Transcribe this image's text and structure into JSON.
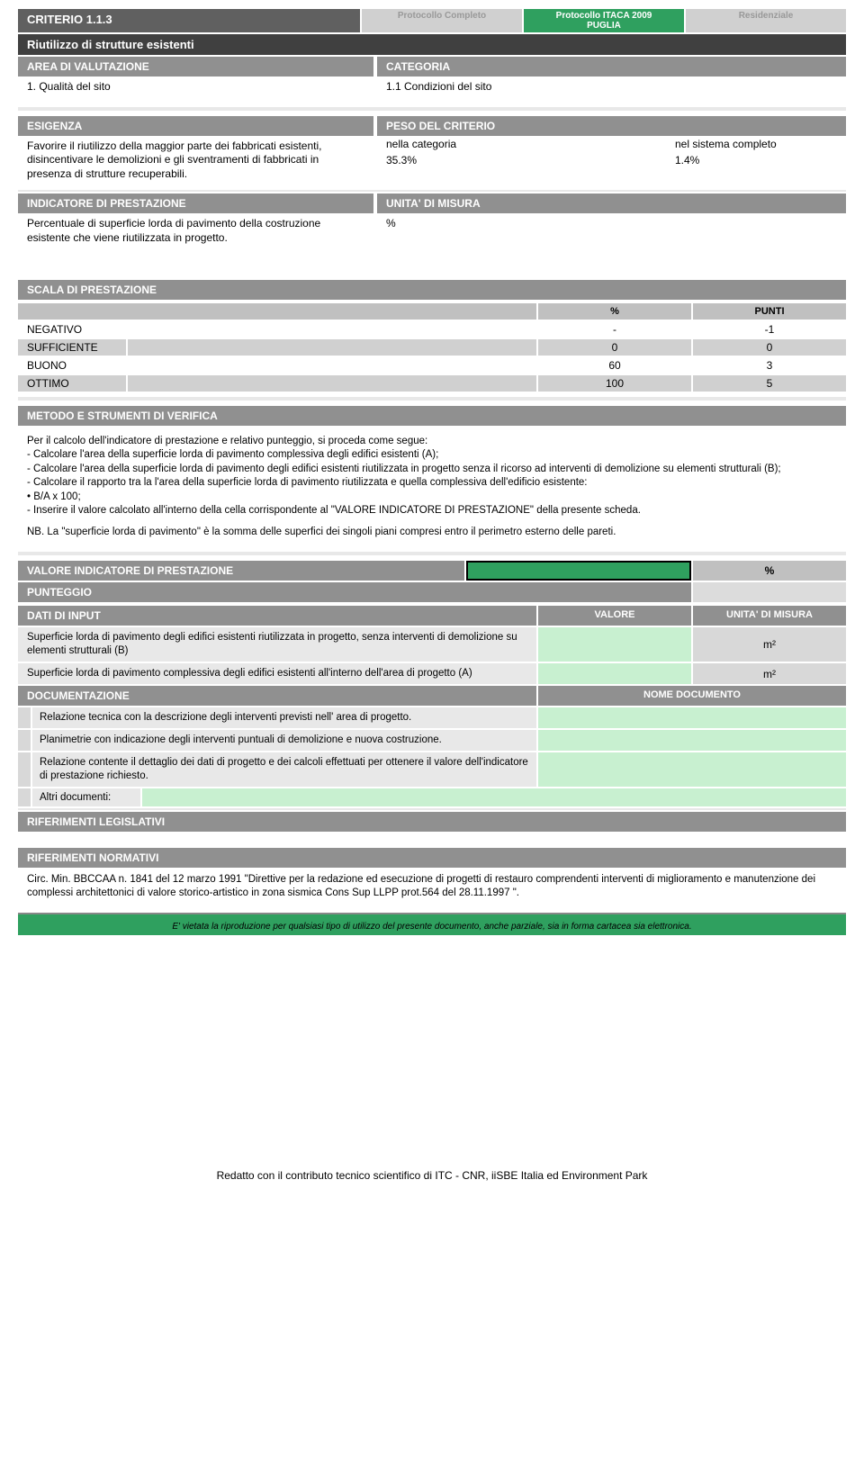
{
  "header": {
    "criterio": "CRITERIO  1.1.3",
    "tab1": "Protocollo Completo",
    "tab2_line1": "Protocollo ITACA 2009",
    "tab2_line2": "PUGLIA",
    "tab3": "Residenziale",
    "subtitle": "Riutilizzo di strutture esistenti"
  },
  "area": {
    "header": "AREA DI VALUTAZIONE",
    "text": "1. Qualità del sito"
  },
  "categoria": {
    "header": "CATEGORIA",
    "text": "1.1 Condizioni del sito"
  },
  "esigenza": {
    "header": "ESIGENZA",
    "text": "Favorire il riutilizzo della maggior parte dei fabbricati esistenti, disincentivare le demolizioni e gli sventramenti di fabbricati in presenza di strutture recuperabili."
  },
  "peso": {
    "header": "PESO DEL CRITERIO",
    "row1_l": "nella categoria",
    "row1_r": "nel sistema completo",
    "row2_l": "35.3%",
    "row2_r": "1.4%"
  },
  "indicatore": {
    "header": "INDICATORE DI PRESTAZIONE",
    "text": "Percentuale di superficie lorda di pavimento della costruzione esistente che viene riutilizzata in progetto."
  },
  "unita": {
    "header": "UNITA' DI MISURA",
    "text": "%"
  },
  "scala": {
    "header": "SCALA DI PRESTAZIONE",
    "col_pct": "%",
    "col_pts": "PUNTI",
    "rows": [
      {
        "label": "NEGATIVO",
        "pct": "-",
        "pts": "-1",
        "shade": false
      },
      {
        "label": "SUFFICIENTE",
        "pct": "0",
        "pts": "0",
        "shade": true
      },
      {
        "label": "BUONO",
        "pct": "60",
        "pts": "3",
        "shade": false
      },
      {
        "label": "OTTIMO",
        "pct": "100",
        "pts": "5",
        "shade": true
      }
    ]
  },
  "metodo": {
    "header": "METODO E STRUMENTI DI VERIFICA",
    "p1": "Per il calcolo dell'indicatore di prestazione e relativo punteggio, si proceda come segue:",
    "l1": "- Calcolare l'area della superficie lorda di pavimento complessiva degli edifici esistenti (A);",
    "l2": "- Calcolare l'area della superficie lorda di pavimento degli edifici esistenti riutilizzata in progetto senza il ricorso ad interventi di demolizione su elementi strutturali (B);",
    "l3": "- Calcolare il rapporto tra la l'area della superficie lorda di pavimento riutilizzata e quella complessiva dell'edificio esistente:",
    "l4": "•  B/A x 100;",
    "l5": "- Inserire il valore calcolato all'interno della cella corrispondente al \"VALORE INDICATORE DI PRESTAZIONE\" della presente scheda.",
    "nb": "NB. La \"superficie lorda di pavimento\" è  la somma delle superfici dei singoli piani compresi entro il perimetro esterno delle pareti."
  },
  "vip": {
    "header": "VALORE INDICATORE DI PRESTAZIONE",
    "unit": "%"
  },
  "punteggio": {
    "header": "PUNTEGGIO"
  },
  "inputs": {
    "header": "DATI DI INPUT",
    "col_val": "VALORE",
    "col_unit": "UNITA' DI MISURA",
    "rows": [
      {
        "label": "Superficie  lorda di pavimento degli edifici esistenti riutilizzata in progetto, senza interventi di demolizione su elementi strutturali (B)",
        "unit": "m²"
      },
      {
        "label": "Superficie lorda di pavimento complessiva degli edifici esistenti all'interno dell'area di progetto (A)",
        "unit": "m²"
      }
    ]
  },
  "docs": {
    "header": "DOCUMENTAZIONE",
    "col_name": "NOME DOCUMENTO",
    "rows": [
      "Relazione tecnica con la descrizione degli interventi previsti nell' area di progetto.",
      "Planimetrie con indicazione degli interventi puntuali di demolizione e nuova costruzione.",
      "Relazione contente il dettaglio dei dati di progetto e dei calcoli effettuati per ottenere il valore dell'indicatore di prestazione richiesto."
    ],
    "altri": "Altri documenti:"
  },
  "rif_leg": {
    "header": "RIFERIMENTI LEGISLATIVI"
  },
  "rif_norm": {
    "header": "RIFERIMENTI NORMATIVI",
    "text": "Circ. Min. BBCCAA n. 1841 del 12 marzo 1991 \"Direttive per la redazione ed esecuzione di progetti di restauro comprendenti interventi di miglioramento e manutenzione dei complessi architettonici di valore storico-artistico in zona sismica Cons Sup LLPP prot.564 del 28.11.1997 \"."
  },
  "footer": {
    "disclaimer": "E' vietata la riproduzione per qualsiasi tipo di utilizzo del presente documento, anche parziale, sia in forma cartacea sia elettronica.",
    "attrib": "Redatto con il contributo tecnico scientifico di ITC - CNR, iiSBE Italia ed Environment Park"
  },
  "colors": {
    "dark_gray": "#606060",
    "darker_gray": "#404040",
    "mid_gray": "#909090",
    "light_gray": "#d0d0d0",
    "lighter_gray": "#e8e8e8",
    "green": "#2fa05f",
    "pale_green": "#c8f0d0"
  }
}
